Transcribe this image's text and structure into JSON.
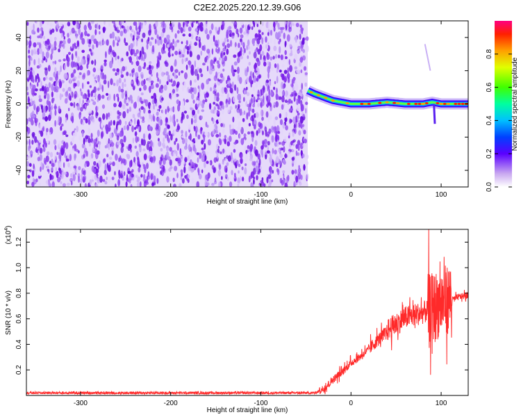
{
  "title": "C2E2.2025.220.12.39.G06",
  "colors": {
    "spectrum_low": "#8a2be2",
    "snr_line": "#ff2a2a",
    "highlight": "#ff0000"
  },
  "chart_data": [
    {
      "id": "spectrogram",
      "type": "heatmap",
      "xlabel": "Height of straight line (km)",
      "ylabel": "Frequency (Hz)",
      "xlim": [
        -360,
        130
      ],
      "ylim": [
        -50,
        50
      ],
      "x_ticks": [
        "-300",
        "-200",
        "-100",
        "0",
        "100"
      ],
      "x_tick_values": [
        -300,
        -200,
        -100,
        0,
        100
      ],
      "y_ticks": [
        "-40",
        "-20",
        "0",
        "20",
        "40"
      ],
      "y_tick_values": [
        -40,
        -20,
        0,
        20,
        40
      ],
      "noise_region_x": [
        -360,
        -48
      ],
      "signal_track": {
        "x": [
          -48,
          -40,
          -30,
          -20,
          -10,
          0,
          20,
          40,
          60,
          80,
          90,
          100,
          110,
          130
        ],
        "freq_hz": [
          8,
          6,
          4,
          2,
          1,
          0,
          0,
          1,
          0,
          0,
          1,
          0,
          0,
          0
        ]
      },
      "colorbar": {
        "label": "Normalized spectral amplitude",
        "ticks": [
          "0.0",
          "0.2",
          "0.4",
          "0.6",
          "0.8"
        ],
        "tick_values": [
          0.0,
          0.2,
          0.4,
          0.6,
          0.8
        ],
        "range": [
          0,
          1
        ],
        "colormap": "rainbow"
      }
    },
    {
      "id": "snr",
      "type": "line",
      "xlabel": "Height of straight line (km)",
      "ylabel": "SNR (10 * v/v)",
      "scale_note": "(x10",
      "scale_exp": "4",
      "scale_close": ")",
      "xlim": [
        -360,
        130
      ],
      "ylim": [
        0,
        1.3
      ],
      "x_ticks": [
        "-300",
        "-200",
        "-100",
        "0",
        "100"
      ],
      "x_tick_values": [
        -300,
        -200,
        -100,
        0,
        100
      ],
      "y_ticks": [
        "0.2",
        "0.4",
        "0.6",
        "0.8",
        "1.0",
        "1.2"
      ],
      "y_tick_values": [
        0.2,
        0.4,
        0.6,
        0.8,
        1.0,
        1.2
      ],
      "series": [
        {
          "color": "#ff2a2a",
          "x": [
            -360,
            -300,
            -200,
            -100,
            -40,
            -30,
            -20,
            -10,
            0,
            10,
            20,
            30,
            40,
            50,
            60,
            70,
            80,
            90,
            100,
            110,
            120,
            130
          ],
          "values": [
            0.02,
            0.02,
            0.02,
            0.02,
            0.02,
            0.05,
            0.12,
            0.18,
            0.25,
            0.3,
            0.36,
            0.43,
            0.5,
            0.55,
            0.6,
            0.62,
            0.64,
            0.66,
            0.7,
            0.74,
            0.77,
            0.78
          ]
        }
      ]
    }
  ]
}
